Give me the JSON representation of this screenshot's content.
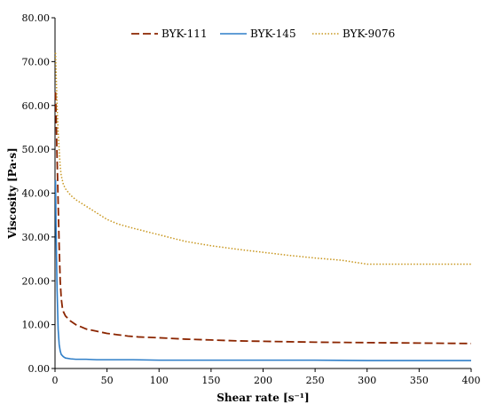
{
  "chart_data": {
    "type": "line",
    "title": "",
    "xlabel": "Shear rate [s⁻¹]",
    "ylabel": "Viscosity [Pa·s]",
    "xlim": [
      0,
      400
    ],
    "ylim": [
      0,
      80
    ],
    "xticks": [
      0,
      50,
      100,
      150,
      200,
      250,
      300,
      350,
      400
    ],
    "yticks": [
      0,
      10,
      20,
      30,
      40,
      50,
      60,
      70,
      80
    ],
    "xtick_labels": [
      "0",
      "50",
      "100",
      "150",
      "200",
      "250",
      "300",
      "350",
      "400"
    ],
    "ytick_labels": [
      "0.00",
      "10.00",
      "20.00",
      "30.00",
      "40.00",
      "50.00",
      "60.00",
      "70.00",
      "80.00"
    ],
    "grid": false,
    "legend_position": "top",
    "series": [
      {
        "name": "BYK-111",
        "color": "#8B2500",
        "dash": "dashed",
        "x": [
          0.5,
          1,
          2,
          3,
          4,
          5,
          6,
          7,
          8,
          10,
          12,
          15,
          20,
          25,
          30,
          40,
          50,
          60,
          70,
          80,
          100,
          125,
          150,
          175,
          200,
          250,
          300,
          350,
          400
        ],
        "y": [
          63,
          58,
          48,
          38,
          28,
          20,
          16,
          14,
          13,
          12,
          11.5,
          10.8,
          10.0,
          9.5,
          9.0,
          8.5,
          8.0,
          7.7,
          7.4,
          7.2,
          7.0,
          6.7,
          6.5,
          6.3,
          6.2,
          6.0,
          5.9,
          5.8,
          5.7
        ]
      },
      {
        "name": "BYK-145",
        "color": "#2E7EC8",
        "dash": "solid",
        "x": [
          0.5,
          1,
          2,
          3,
          4,
          5,
          6,
          8,
          10,
          15,
          20,
          30,
          40,
          50,
          75,
          100,
          150,
          200,
          250,
          300,
          350,
          400
        ],
        "y": [
          43,
          32,
          18,
          9,
          5.5,
          4,
          3.2,
          2.7,
          2.4,
          2.2,
          2.1,
          2.1,
          2.0,
          2.0,
          2.0,
          1.9,
          1.9,
          1.9,
          1.9,
          1.8,
          1.8,
          1.8
        ]
      },
      {
        "name": "BYK-9076",
        "color": "#C8961E",
        "dash": "dotted",
        "x": [
          0.5,
          1,
          2,
          3,
          4,
          5,
          6,
          8,
          10,
          15,
          20,
          30,
          40,
          50,
          60,
          75,
          100,
          125,
          150,
          175,
          200,
          225,
          250,
          275,
          300,
          325,
          350,
          375,
          400
        ],
        "y": [
          72,
          68,
          60,
          54,
          50,
          46,
          44,
          42,
          41,
          39.5,
          38.5,
          37,
          35.5,
          34,
          33,
          32,
          30.5,
          29,
          28,
          27.2,
          26.5,
          25.8,
          25.2,
          24.7,
          23.8,
          23.8,
          23.8,
          23.8,
          23.8
        ]
      }
    ]
  }
}
